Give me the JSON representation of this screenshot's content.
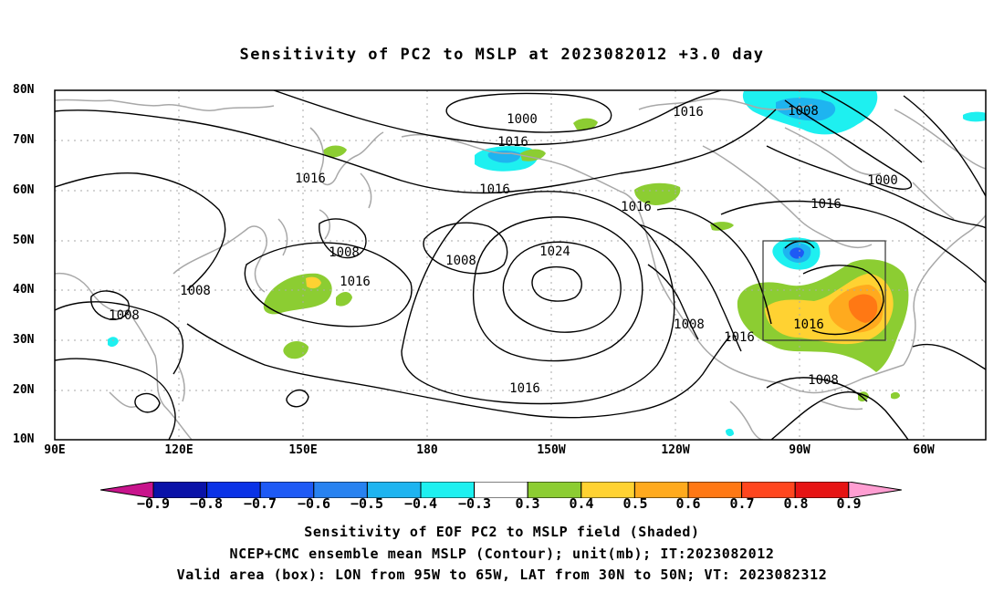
{
  "title": "Sensitivity of PC2 to MSLP at 2023082012 +3.0 day",
  "axes": {
    "lat_ticks": [
      "80N",
      "70N",
      "60N",
      "50N",
      "40N",
      "30N",
      "20N",
      "10N"
    ],
    "lon_ticks": [
      "90E",
      "120E",
      "150E",
      "180",
      "150W",
      "120W",
      "90W",
      "60W"
    ]
  },
  "contour_labels": [
    "1000",
    "1016",
    "1008",
    "1000",
    "1016",
    "1016",
    "1016",
    "1016",
    "1016",
    "1008",
    "1008",
    "1008",
    "1024",
    "1016",
    "1008",
    "1008",
    "1016",
    "1016",
    "1016",
    "1008",
    "1016"
  ],
  "colorbar": {
    "labels": [
      "−0.9",
      "−0.8",
      "−0.7",
      "−0.6",
      "−0.5",
      "−0.4",
      "−0.3",
      "0.3",
      "0.4",
      "0.5",
      "0.6",
      "0.7",
      "0.8",
      "0.9"
    ],
    "colors": [
      "#0a12a8",
      "#0a32e6",
      "#1e5af5",
      "#2882f0",
      "#1eb4f0",
      "#1ef0f0",
      "#ffffff",
      "#8ccd32",
      "#ffd232",
      "#ffaa1e",
      "#ff7814",
      "#ff461e",
      "#e61414"
    ],
    "low_end_color": "#c8148c",
    "high_end_color": "#ff9ed2"
  },
  "captions": [
    "Sensitivity of EOF PC2 to MSLP field (Shaded)",
    "NCEP+CMC ensemble mean MSLP (Contour); unit(mb); IT:2023082012",
    "Valid area (box): LON from 95W to 65W, LAT from 30N to 50N; VT: 2023082312"
  ]
}
